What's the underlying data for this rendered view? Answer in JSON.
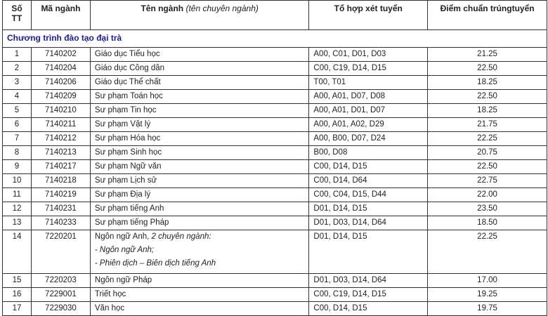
{
  "headers": {
    "stt": "Số TT",
    "ma": "Mã ngành",
    "ten": "Tên ngành",
    "ten_italic": "(tên chuyên ngành)",
    "tohop": "Tổ hợp xét tuyển",
    "diem": "Điểm chuẩn trúngtuyển"
  },
  "section": "Chương trình đào tạo đại trà",
  "rows": [
    {
      "stt": "1",
      "ma": "7140202",
      "ten": "Giáo dục Tiểu học",
      "tohop": "A00, C01, D01, D03",
      "diem": "21.25"
    },
    {
      "stt": "2",
      "ma": "7140204",
      "ten": "Giáo dục Công dân",
      "tohop": "C00, C19, D14, D15",
      "diem": "22.50"
    },
    {
      "stt": "3",
      "ma": "7140206",
      "ten": "Giáo dục Thể chất",
      "tohop": "T00, T01",
      "diem": "18.25"
    },
    {
      "stt": "4",
      "ma": "7140209",
      "ten": "Sư phạm Toán học",
      "tohop": "A00, A01, D07, D08",
      "diem": "22.50"
    },
    {
      "stt": "5",
      "ma": "7140210",
      "ten": "Sư phạm Tin học",
      "tohop": "A00, A01, D01, D07",
      "diem": "18.25"
    },
    {
      "stt": "6",
      "ma": "7140211",
      "ten": "Sư phạm Vật lý",
      "tohop": "A00, A01, A02, D29",
      "diem": "21.75"
    },
    {
      "stt": "7",
      "ma": "7140212",
      "ten": "Sư phạm Hóa học",
      "tohop": "A00, B00, D07, D24",
      "diem": "22.25"
    },
    {
      "stt": "8",
      "ma": "7140213",
      "ten": "Sư phạm Sinh học",
      "tohop": "B00, D08",
      "diem": "20.75"
    },
    {
      "stt": "9",
      "ma": "7140217",
      "ten": "Sư phạm Ngữ văn",
      "tohop": "C00, D14, D15",
      "diem": "22.50"
    },
    {
      "stt": "10",
      "ma": "7140218",
      "ten": "Sư phạm Lịch sử",
      "tohop": "C00, D14, D64",
      "diem": "22.75"
    },
    {
      "stt": "11",
      "ma": "7140219",
      "ten": "Sư phạm Địa lý",
      "tohop": "C00, C04, D15, D44",
      "diem": "22.00"
    },
    {
      "stt": "12",
      "ma": "7140231",
      "ten": "Sư phạm tiếng Anh",
      "tohop": "D01, D14, D15",
      "diem": "23.50"
    },
    {
      "stt": "13",
      "ma": "7140233",
      "ten": "Sư phạm tiếng Pháp",
      "tohop": "D01, D03, D14, D64",
      "diem": "18.50"
    },
    {
      "stt": "14",
      "ma": "7220201",
      "ten": "Ngôn ngữ Anh,",
      "ten_italic": "2 chuyên ngành:",
      "subs": [
        "- Ngôn ngữ Anh;",
        "- Phiên dịch – Biên dịch tiếng Anh"
      ],
      "tohop": "D01, D14, D15",
      "diem": "22.25"
    },
    {
      "stt": "15",
      "ma": "7220203",
      "ten": "Ngôn ngữ Pháp",
      "tohop": "D01, D03, D14, D64",
      "diem": "17.00"
    },
    {
      "stt": "16",
      "ma": "7229001",
      "ten": "Triết học",
      "tohop": "C00, C19, D14, D15",
      "diem": "19.25"
    },
    {
      "stt": "17",
      "ma": "7229030",
      "ten": "Văn học",
      "tohop": "C00, D14, D15",
      "diem": "19.75"
    }
  ]
}
